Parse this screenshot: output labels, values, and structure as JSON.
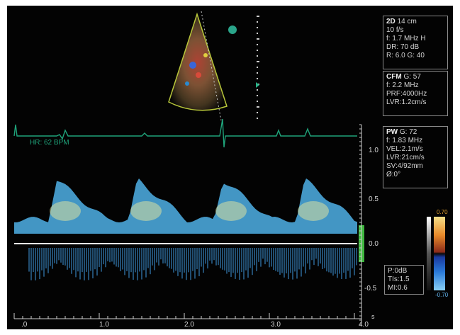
{
  "settings_2d": {
    "header_key": "2D",
    "header_val": "14 cm",
    "lines": [
      "10 f/s",
      "f: 1.7 MHz H",
      "DR: 70 dB",
      "R: 6.0   G: 40"
    ]
  },
  "settings_cfm": {
    "header_key": "CFM",
    "header_val": "G: 57",
    "lines": [
      "f: 2.2 MHz",
      "PRF:4000Hz",
      "LVR:1.2cm/s"
    ]
  },
  "settings_pw": {
    "header_key": "PW",
    "header_val": "G: 72",
    "lines": [
      "f: 1.83 MHz",
      "VEL:2.1m/s",
      "LVR:21cm/s",
      "SV:4/92mm",
      "Ø:0°"
    ]
  },
  "settings_power": {
    "lines": [
      "P:0dB",
      "TIs:1.5",
      "MI:0.6"
    ]
  },
  "ecg": {
    "heart_rate": "HR: 62 BPM",
    "color": "#1fa37a"
  },
  "color_bar": {
    "max": "0.70",
    "min": "-0.70"
  },
  "velocity_axis": {
    "ticks": [
      "1.0",
      "0.5",
      "0.0",
      "-0.5"
    ],
    "values": [
      1.0,
      0.5,
      0.0,
      -0.5
    ]
  },
  "time_axis": {
    "ticks": [
      ".0",
      "1.0",
      "2.0",
      "3.0",
      "4.0"
    ],
    "unit": "s"
  },
  "colors": {
    "doppler": "#4fb0e6",
    "doppler_peak": "#d9e0a0",
    "baseline_marker": "#3fb83f"
  }
}
